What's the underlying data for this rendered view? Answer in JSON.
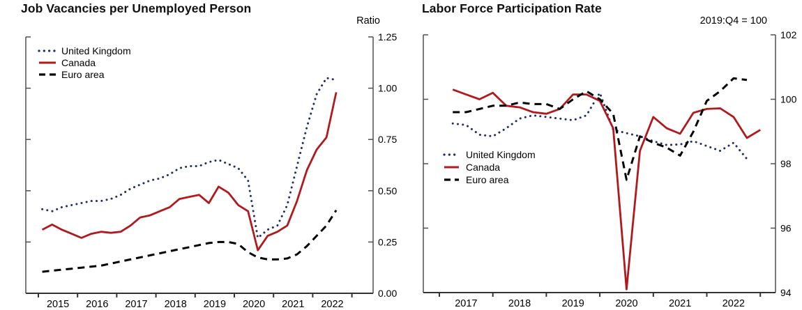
{
  "page": {
    "background": "#ffffff",
    "text_color": "#000000",
    "axis_color": "#4f4f4f"
  },
  "chart_data": [
    {
      "type": "line",
      "title": "Job Vacancies per Unemployed Person",
      "unit_label": "Ratio",
      "legend_position": "top-left",
      "x_axis": {
        "tick_years": [
          2015,
          2016,
          2017,
          2018,
          2019,
          2020,
          2021,
          2022,
          2023
        ],
        "labels": [
          "2015",
          "2016",
          "2017",
          "2018",
          "2019",
          "2020",
          "2021",
          "2022"
        ],
        "grid": false
      },
      "y_axis": {
        "min": 0,
        "max": 1.25,
        "tick_step": 0.25,
        "side": "right",
        "tick_labels": [
          "0.00",
          "0.25",
          "0.50",
          "0.75",
          "1.00",
          "1.25"
        ]
      },
      "series": [
        {
          "name": "United Kingdom",
          "color": "#1f2d69",
          "line_style": "dotted",
          "x_start": 2015.1,
          "x_step": 0.25,
          "values": [
            0.41,
            0.4,
            0.42,
            0.43,
            0.44,
            0.45,
            0.45,
            0.46,
            0.48,
            0.51,
            0.53,
            0.55,
            0.56,
            0.58,
            0.61,
            0.62,
            0.62,
            0.64,
            0.65,
            0.63,
            0.61,
            0.55,
            0.27,
            0.31,
            0.33,
            0.43,
            0.62,
            0.81,
            0.97,
            1.05,
            1.04
          ]
        },
        {
          "name": "Canada",
          "color": "#b2191d",
          "line_style": "solid",
          "x_start": 2015.1,
          "x_step": 0.25,
          "values": [
            0.31,
            0.335,
            0.31,
            0.29,
            0.27,
            0.29,
            0.3,
            0.295,
            0.3,
            0.33,
            0.37,
            0.38,
            0.4,
            0.42,
            0.46,
            0.47,
            0.48,
            0.44,
            0.52,
            0.49,
            0.43,
            0.4,
            0.21,
            0.28,
            0.3,
            0.33,
            0.45,
            0.6,
            0.7,
            0.76,
            0.98
          ]
        },
        {
          "name": "Euro area",
          "color": "#000000",
          "line_style": "dashed",
          "x_start": 2015.1,
          "x_step": 0.25,
          "values": [
            0.105,
            0.11,
            0.115,
            0.12,
            0.125,
            0.13,
            0.135,
            0.145,
            0.155,
            0.165,
            0.175,
            0.185,
            0.195,
            0.205,
            0.215,
            0.225,
            0.235,
            0.245,
            0.25,
            0.25,
            0.24,
            0.2,
            0.175,
            0.165,
            0.165,
            0.17,
            0.19,
            0.23,
            0.28,
            0.33,
            0.405
          ]
        }
      ]
    },
    {
      "type": "line",
      "title": "Labor Force Participation Rate",
      "unit_label": "2019:Q4 = 100",
      "legend_position": "middle-left",
      "x_axis": {
        "tick_years": [
          2017,
          2018,
          2019,
          2020,
          2021,
          2022,
          2023
        ],
        "labels": [
          "2017",
          "2018",
          "2019",
          "2020",
          "2021",
          "2022"
        ],
        "grid": false
      },
      "y_axis": {
        "min": 94,
        "max": 102,
        "tick_step": 2,
        "side": "right",
        "tick_labels": [
          "94",
          "96",
          "98",
          "100",
          "102"
        ]
      },
      "series": [
        {
          "name": "United Kingdom",
          "color": "#1f2d69",
          "line_style": "dotted",
          "x_start": 2017.25,
          "x_step": 0.25,
          "values": [
            99.25,
            99.2,
            98.9,
            98.85,
            99.1,
            99.4,
            99.5,
            99.45,
            99.4,
            99.35,
            99.5,
            100.2,
            99.05,
            98.95,
            98.85,
            98.7,
            98.58,
            98.6,
            98.7,
            98.55,
            98.4,
            98.65,
            98.15
          ]
        },
        {
          "name": "Canada",
          "color": "#b2191d",
          "line_style": "solid",
          "x_start": 2017.25,
          "x_step": 0.25,
          "values": [
            100.3,
            100.15,
            100.0,
            100.2,
            99.8,
            99.75,
            99.6,
            99.55,
            99.7,
            100.15,
            100.15,
            99.95,
            99.1,
            94.1,
            98.4,
            99.45,
            99.1,
            98.93,
            99.58,
            99.7,
            99.72,
            99.45,
            98.8,
            99.05
          ]
        },
        {
          "name": "Euro area",
          "color": "#000000",
          "line_style": "dashed",
          "x_start": 2017.25,
          "x_step": 0.25,
          "values": [
            99.6,
            99.6,
            99.7,
            99.8,
            99.8,
            99.9,
            99.85,
            99.85,
            99.7,
            100.0,
            100.25,
            100.0,
            99.55,
            97.5,
            98.85,
            98.65,
            98.5,
            98.25,
            99.0,
            99.95,
            100.25,
            100.65,
            100.6
          ]
        }
      ]
    }
  ]
}
